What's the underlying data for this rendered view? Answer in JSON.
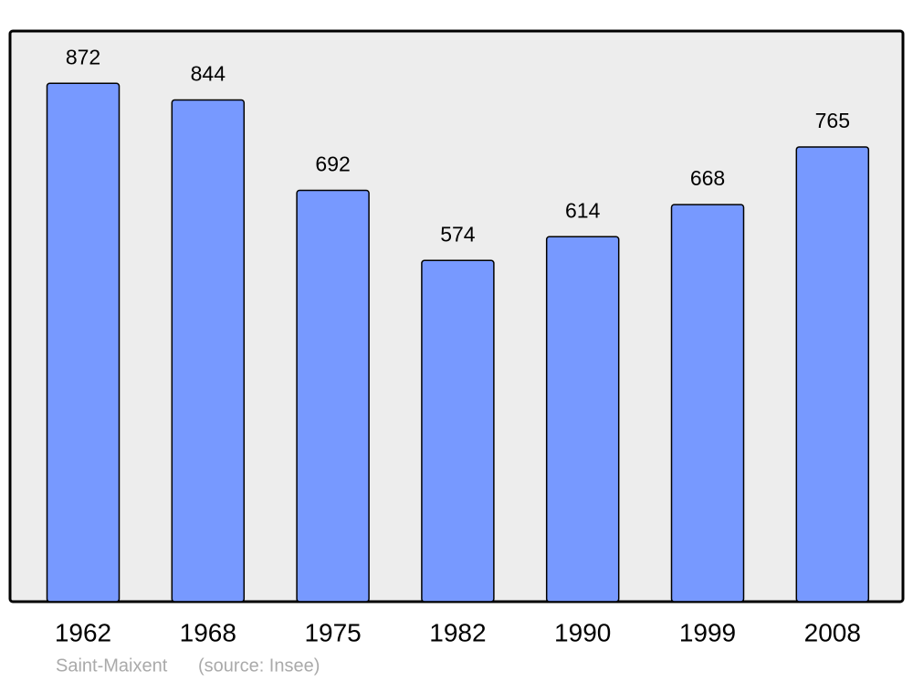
{
  "chart_data": {
    "type": "bar",
    "title": "Saint-Maixent",
    "source": "(source: Insee)",
    "categories": [
      "1962",
      "1968",
      "1975",
      "1982",
      "1990",
      "1999",
      "2008"
    ],
    "values": [
      872,
      844,
      692,
      574,
      614,
      668,
      765
    ],
    "color": "#7799ff",
    "ylim": [
      0,
      960
    ]
  }
}
